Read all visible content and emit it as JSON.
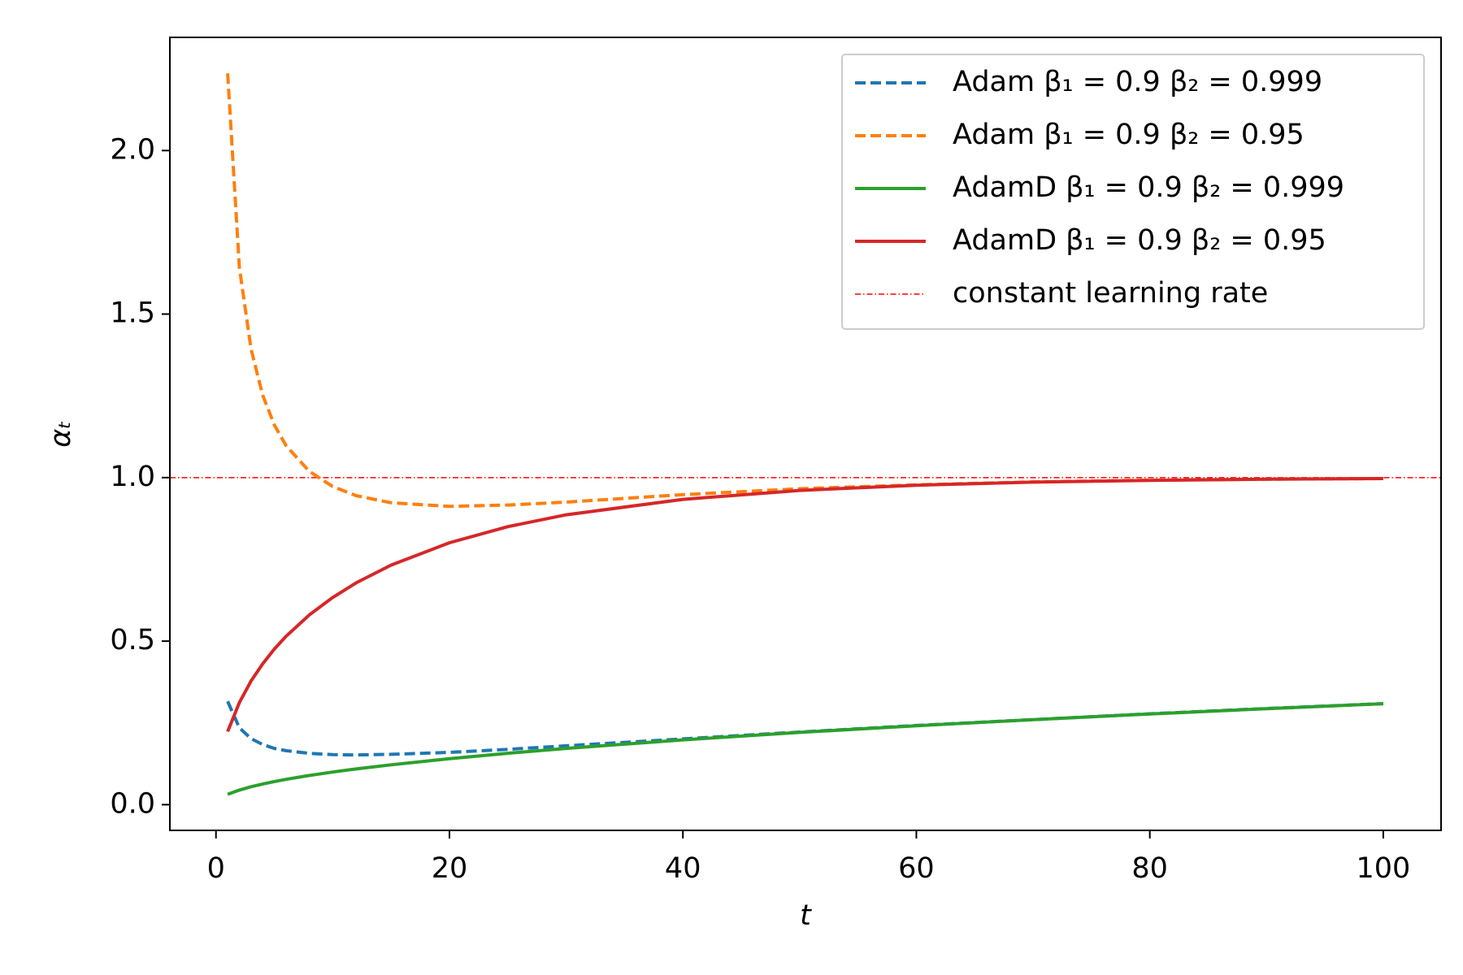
{
  "chart_data": {
    "type": "line",
    "xlabel": "t",
    "ylabel": "αₜ",
    "x": [
      1,
      2,
      3,
      4,
      5,
      6,
      8,
      10,
      12,
      15,
      20,
      25,
      30,
      40,
      50,
      60,
      70,
      80,
      90,
      100
    ],
    "series": [
      {
        "name": "Adam β₁ = 0.9 β₂ = 0.999",
        "color": "#1f77b4",
        "style": "dashed",
        "values": [
          0.316,
          0.235,
          0.202,
          0.184,
          0.172,
          0.165,
          0.157,
          0.153,
          0.152,
          0.154,
          0.16,
          0.169,
          0.18,
          0.201,
          0.222,
          0.242,
          0.26,
          0.278,
          0.294,
          0.309
        ]
      },
      {
        "name": "Adam β₁ = 0.9 β₂ = 0.95",
        "color": "#ff7f0e",
        "style": "dashed",
        "values": [
          2.236,
          1.643,
          1.394,
          1.252,
          1.161,
          1.098,
          1.019,
          0.973,
          0.945,
          0.923,
          0.912,
          0.916,
          0.925,
          0.948,
          0.966,
          0.978,
          0.987,
          0.992,
          0.995,
          0.997
        ]
      },
      {
        "name": "AdamD β₁ = 0.9 β₂ = 0.999",
        "color": "#2ca02c",
        "style": "solid",
        "values": [
          0.0316,
          0.0447,
          0.0547,
          0.0632,
          0.0706,
          0.0774,
          0.0893,
          0.0998,
          0.1092,
          0.122,
          0.1408,
          0.1572,
          0.172,
          0.1981,
          0.2209,
          0.2414,
          0.2601,
          0.2774,
          0.2935,
          0.3086
        ]
      },
      {
        "name": "AdamD β₁ = 0.9 β₂ = 0.95",
        "color": "#d62728",
        "style": "solid",
        "values": [
          0.2236,
          0.3122,
          0.3777,
          0.4307,
          0.4756,
          0.5147,
          0.5802,
          0.6335,
          0.678,
          0.7326,
          0.8009,
          0.8501,
          0.8862,
          0.9335,
          0.9608,
          0.9767,
          0.9861,
          0.9917,
          0.995,
          0.997
        ]
      }
    ],
    "reference_line": {
      "name": "constant learning rate",
      "value": 1.0,
      "color": "#ff0000",
      "style": "dashdot"
    },
    "xlim": [
      -3.95,
      104.95
    ],
    "ylim": [
      -0.0786,
      2.346
    ],
    "xticks": [
      0,
      20,
      40,
      60,
      80,
      100
    ],
    "yticks": [
      {
        "value": 0,
        "label": "0.0"
      },
      0.5,
      {
        "value": 1,
        "label": "1.0"
      },
      1.5,
      {
        "value": 2,
        "label": "2.0"
      }
    ],
    "grid": false,
    "legend": "upper right"
  }
}
